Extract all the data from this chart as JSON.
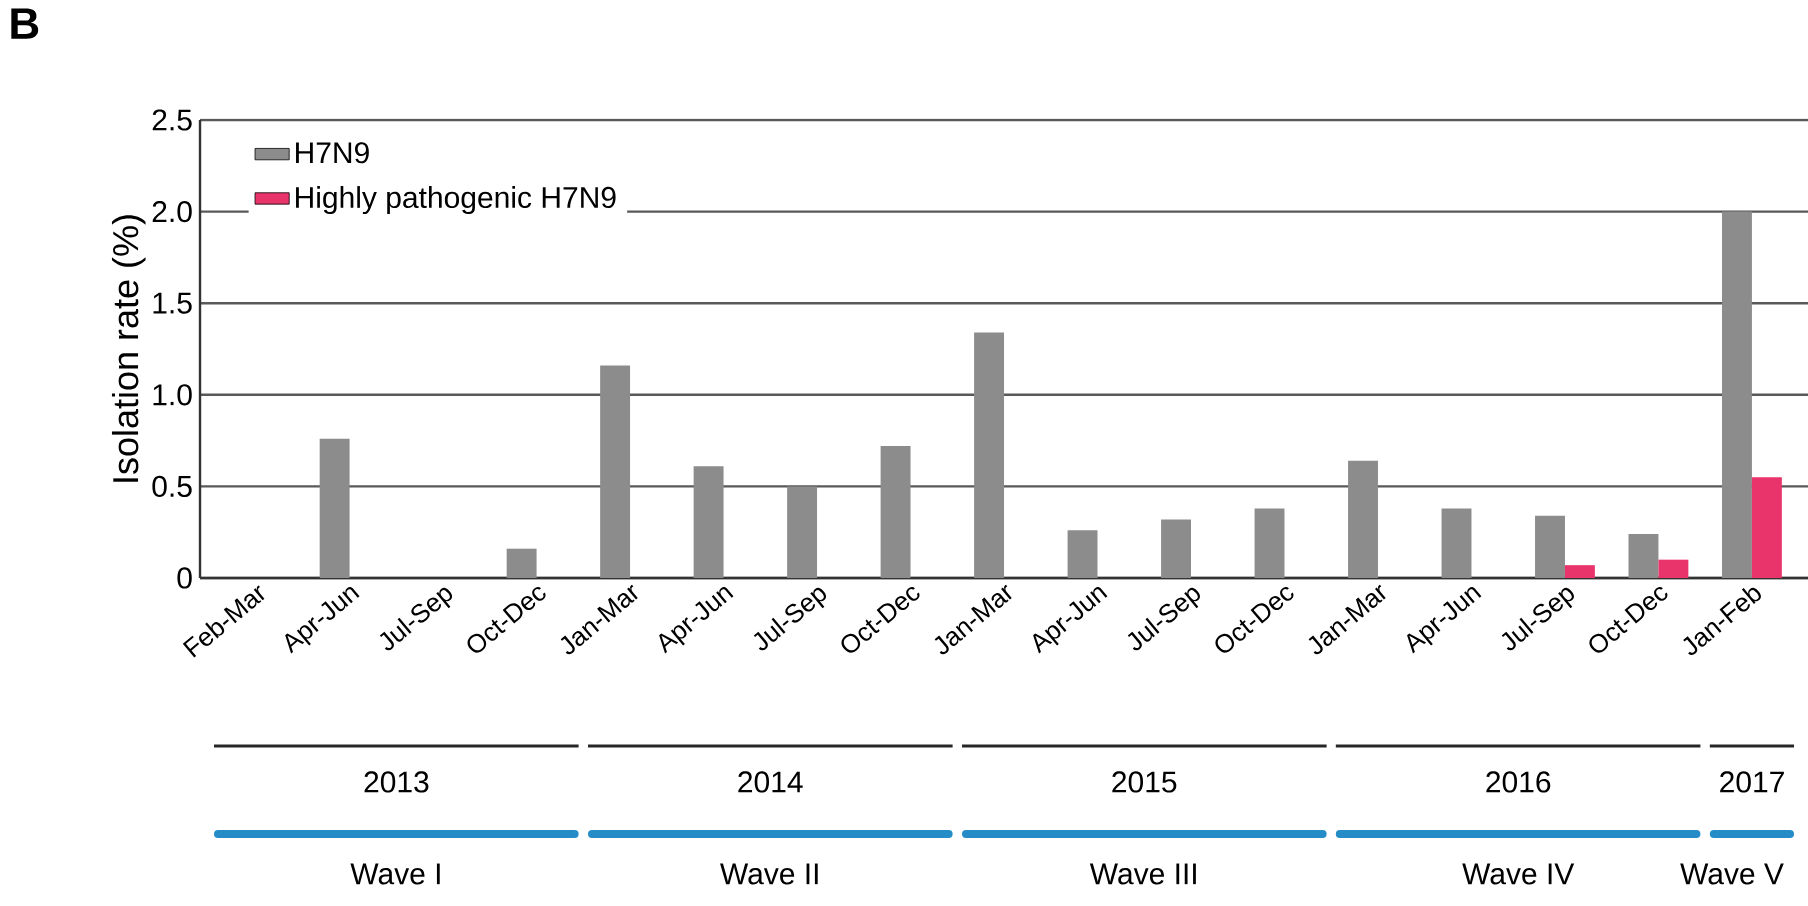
{
  "chart_data": {
    "type": "bar",
    "ylabel": "Isolation rate (%)",
    "categories": [
      "Feb-Mar",
      "Apr-Jun",
      "Jul-Sep",
      "Oct-Dec",
      "Jan-Mar",
      "Apr-Jun",
      "Jul-Sep",
      "Oct-Dec",
      "Jan-Mar",
      "Apr-Jun",
      "Jul-Sep",
      "Oct-Dec",
      "Jan-Mar",
      "Apr-Jun",
      "Jul-Sep",
      "Oct-Dec",
      "Jan-Feb"
    ],
    "series": [
      {
        "name": "H7N9",
        "color": "#8c8c8c",
        "values": [
          0,
          0.76,
          0,
          0.16,
          1.16,
          0.61,
          0.5,
          0.72,
          1.34,
          0.26,
          0.32,
          0.38,
          0.64,
          0.38,
          0.34,
          0.24,
          2.0
        ]
      },
      {
        "name": "Highly pathogenic H7N9",
        "color": "#e8336b",
        "values": [
          0,
          0,
          0,
          0,
          0,
          0,
          0,
          0,
          0,
          0,
          0,
          0,
          0,
          0,
          0.07,
          0.1,
          0.55
        ]
      }
    ],
    "ylim": [
      0,
      2.5
    ],
    "yticks": [
      0,
      {
        "value": 0.5,
        "label": "0.5"
      },
      {
        "value": 1,
        "label": "1.0"
      },
      {
        "value": 1.5,
        "label": "1.5"
      },
      {
        "value": 2,
        "label": "2.0"
      },
      {
        "value": 2.5,
        "label": "2.5"
      }
    ],
    "grid": "y",
    "legend": "top left",
    "annotations": [
      "B",
      "2013",
      "2014",
      "2015",
      "2016",
      "2017",
      "Wave I",
      "Wave II",
      "Wave III",
      "Wave IV",
      "Wave V"
    ]
  }
}
